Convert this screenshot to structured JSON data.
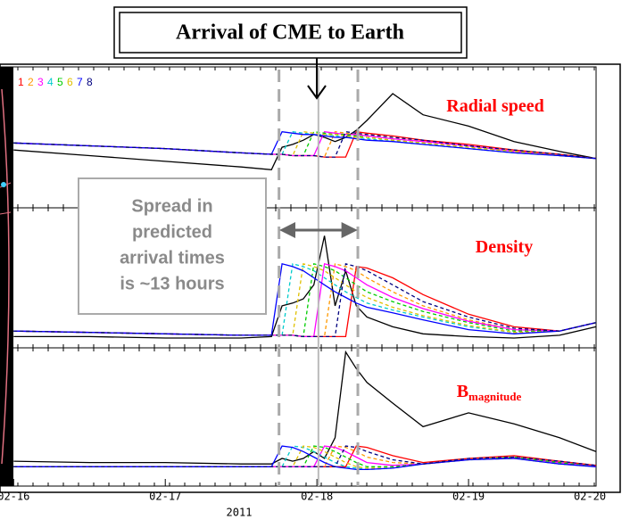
{
  "annotations": {
    "title": "Arrival of CME to Earth",
    "spread_text": [
      "Spread in",
      "predicted",
      "arrival times",
      "is ~13 hours"
    ],
    "arrival_line": 2.01,
    "spread_lines": [
      1.75,
      2.27
    ]
  },
  "chart_data": [
    {
      "type": "line",
      "title": "Radial speed",
      "legend": true,
      "x": [
        0,
        0.5,
        1,
        1.5,
        1.7,
        1.77,
        1.84,
        1.91,
        1.98,
        2.05,
        2.12,
        2.19,
        2.26,
        2.33,
        2.5,
        2.7,
        3.0,
        3.3,
        3.6,
        3.84
      ],
      "xlim": [
        -0.09,
        4
      ],
      "ylim": [
        0,
        1
      ],
      "series": [
        {
          "color": "#000000",
          "dashed": false,
          "values": [
            0.41,
            0.37,
            0.33,
            0.29,
            0.27,
            0.43,
            0.45,
            0.48,
            0.52,
            0.5,
            0.47,
            0.5,
            0.55,
            0.62,
            0.81,
            0.66,
            0.58,
            0.47,
            0.4,
            0.35
          ]
        },
        {
          "name": "1",
          "color": "#ff0000",
          "dashed": false,
          "values": [
            0.46,
            0.44,
            0.42,
            0.39,
            0.38,
            0.38,
            0.37,
            0.37,
            0.37,
            0.36,
            0.36,
            0.36,
            0.54,
            0.53,
            0.51,
            0.48,
            0.45,
            0.41,
            0.38,
            0.35
          ]
        },
        {
          "name": "2",
          "color": "#ff9900",
          "dashed": true,
          "values": [
            0.46,
            0.44,
            0.42,
            0.39,
            0.38,
            0.38,
            0.37,
            0.37,
            0.37,
            0.36,
            0.54,
            0.53,
            0.52,
            0.52,
            0.5,
            0.47,
            0.44,
            0.41,
            0.38,
            0.35
          ]
        },
        {
          "name": "3",
          "color": "#ff00ff",
          "dashed": false,
          "values": [
            0.46,
            0.44,
            0.42,
            0.39,
            0.38,
            0.38,
            0.37,
            0.37,
            0.37,
            0.54,
            0.53,
            0.52,
            0.52,
            0.51,
            0.49,
            0.47,
            0.44,
            0.4,
            0.37,
            0.35
          ]
        },
        {
          "name": "4",
          "color": "#00cccc",
          "dashed": true,
          "values": [
            0.46,
            0.44,
            0.42,
            0.39,
            0.38,
            0.38,
            0.54,
            0.53,
            0.52,
            0.52,
            0.51,
            0.5,
            0.5,
            0.49,
            0.47,
            0.45,
            0.42,
            0.39,
            0.37,
            0.35
          ]
        },
        {
          "name": "5",
          "color": "#00cc00",
          "dashed": true,
          "values": [
            0.46,
            0.44,
            0.42,
            0.39,
            0.38,
            0.38,
            0.37,
            0.37,
            0.54,
            0.53,
            0.52,
            0.52,
            0.51,
            0.5,
            0.48,
            0.46,
            0.43,
            0.4,
            0.37,
            0.35
          ]
        },
        {
          "name": "6",
          "color": "#e0c000",
          "dashed": true,
          "values": [
            0.46,
            0.44,
            0.42,
            0.39,
            0.38,
            0.38,
            0.37,
            0.54,
            0.53,
            0.52,
            0.52,
            0.51,
            0.5,
            0.5,
            0.48,
            0.46,
            0.43,
            0.4,
            0.37,
            0.35
          ]
        },
        {
          "name": "7",
          "color": "#0000ff",
          "dashed": false,
          "values": [
            0.46,
            0.44,
            0.42,
            0.39,
            0.38,
            0.54,
            0.53,
            0.52,
            0.52,
            0.51,
            0.5,
            0.5,
            0.49,
            0.48,
            0.47,
            0.45,
            0.42,
            0.39,
            0.37,
            0.35
          ]
        },
        {
          "name": "8",
          "color": "#000080",
          "dashed": true,
          "values": [
            0.46,
            0.44,
            0.42,
            0.39,
            0.38,
            0.38,
            0.37,
            0.37,
            0.37,
            0.36,
            0.36,
            0.54,
            0.53,
            0.52,
            0.5,
            0.48,
            0.44,
            0.41,
            0.38,
            0.35
          ]
        }
      ]
    },
    {
      "type": "line",
      "title": "Density",
      "x": [
        0,
        0.5,
        1,
        1.5,
        1.7,
        1.77,
        1.84,
        1.91,
        1.98,
        2.05,
        2.12,
        2.19,
        2.26,
        2.33,
        2.5,
        2.7,
        3.0,
        3.3,
        3.6,
        3.84
      ],
      "xlim": [
        -0.09,
        4
      ],
      "ylim": [
        0,
        1
      ],
      "series": [
        {
          "color": "#000000",
          "dashed": false,
          "values": [
            0.08,
            0.08,
            0.07,
            0.07,
            0.08,
            0.3,
            0.32,
            0.35,
            0.45,
            0.8,
            0.3,
            0.55,
            0.3,
            0.22,
            0.15,
            0.1,
            0.08,
            0.07,
            0.09,
            0.15
          ]
        },
        {
          "color": "#ff0000",
          "dashed": false,
          "values": [
            0.12,
            0.11,
            0.1,
            0.09,
            0.09,
            0.09,
            0.09,
            0.08,
            0.08,
            0.08,
            0.08,
            0.08,
            0.58,
            0.57,
            0.5,
            0.38,
            0.24,
            0.15,
            0.12,
            0.18
          ]
        },
        {
          "color": "#ff9900",
          "dashed": true,
          "values": [
            0.12,
            0.11,
            0.1,
            0.09,
            0.09,
            0.09,
            0.09,
            0.08,
            0.08,
            0.08,
            0.6,
            0.58,
            0.55,
            0.5,
            0.4,
            0.3,
            0.2,
            0.13,
            0.12,
            0.18
          ]
        },
        {
          "color": "#ff00ff",
          "dashed": false,
          "values": [
            0.12,
            0.11,
            0.1,
            0.09,
            0.09,
            0.09,
            0.09,
            0.08,
            0.08,
            0.6,
            0.58,
            0.55,
            0.5,
            0.45,
            0.36,
            0.28,
            0.19,
            0.13,
            0.12,
            0.18
          ]
        },
        {
          "color": "#00cccc",
          "dashed": true,
          "values": [
            0.12,
            0.11,
            0.1,
            0.09,
            0.09,
            0.09,
            0.6,
            0.58,
            0.55,
            0.5,
            0.45,
            0.4,
            0.36,
            0.32,
            0.27,
            0.22,
            0.15,
            0.11,
            0.12,
            0.18
          ]
        },
        {
          "color": "#00cc00",
          "dashed": true,
          "values": [
            0.12,
            0.11,
            0.1,
            0.09,
            0.09,
            0.09,
            0.09,
            0.08,
            0.6,
            0.58,
            0.55,
            0.5,
            0.45,
            0.4,
            0.33,
            0.26,
            0.18,
            0.12,
            0.12,
            0.18
          ]
        },
        {
          "color": "#e0c000",
          "dashed": true,
          "values": [
            0.12,
            0.11,
            0.1,
            0.09,
            0.09,
            0.09,
            0.09,
            0.6,
            0.58,
            0.55,
            0.5,
            0.45,
            0.4,
            0.36,
            0.29,
            0.23,
            0.16,
            0.11,
            0.12,
            0.18
          ]
        },
        {
          "color": "#0000ff",
          "dashed": false,
          "values": [
            0.12,
            0.11,
            0.1,
            0.09,
            0.09,
            0.6,
            0.58,
            0.55,
            0.5,
            0.45,
            0.4,
            0.36,
            0.32,
            0.29,
            0.25,
            0.2,
            0.13,
            0.1,
            0.12,
            0.18
          ]
        },
        {
          "color": "#000080",
          "dashed": true,
          "values": [
            0.12,
            0.11,
            0.1,
            0.09,
            0.09,
            0.09,
            0.09,
            0.08,
            0.08,
            0.08,
            0.08,
            0.6,
            0.58,
            0.55,
            0.45,
            0.33,
            0.22,
            0.14,
            0.12,
            0.18
          ]
        }
      ]
    },
    {
      "type": "line",
      "title": "B",
      "title_subscript": "magnitude",
      "xlabel": "2011",
      "x": [
        0,
        0.5,
        1,
        1.5,
        1.7,
        1.77,
        1.84,
        1.91,
        1.98,
        2.05,
        2.12,
        2.19,
        2.26,
        2.33,
        2.5,
        2.7,
        3.0,
        3.3,
        3.6,
        3.84
      ],
      "xlim": [
        -0.09,
        4
      ],
      "ylim": [
        0,
        1
      ],
      "xticks": [
        {
          "value": 0,
          "label": "02-16"
        },
        {
          "value": 1,
          "label": "02-17"
        },
        {
          "value": 2,
          "label": "02-18"
        },
        {
          "value": 3,
          "label": "02-19"
        },
        {
          "value": 4,
          "label": "02-20"
        }
      ],
      "series": [
        {
          "color": "#000000",
          "dashed": false,
          "values": [
            0.18,
            0.17,
            0.17,
            0.16,
            0.16,
            0.2,
            0.18,
            0.2,
            0.25,
            0.2,
            0.35,
            0.97,
            0.85,
            0.75,
            0.6,
            0.43,
            0.53,
            0.45,
            0.35,
            0.25
          ]
        },
        {
          "color": "#ff0000",
          "dashed": false,
          "values": [
            0.14,
            0.14,
            0.14,
            0.14,
            0.14,
            0.14,
            0.14,
            0.14,
            0.14,
            0.14,
            0.14,
            0.14,
            0.29,
            0.28,
            0.22,
            0.17,
            0.2,
            0.22,
            0.18,
            0.15
          ]
        },
        {
          "color": "#ff9900",
          "dashed": true,
          "values": [
            0.14,
            0.14,
            0.14,
            0.14,
            0.14,
            0.14,
            0.14,
            0.14,
            0.14,
            0.14,
            0.29,
            0.28,
            0.25,
            0.21,
            0.17,
            0.16,
            0.19,
            0.21,
            0.17,
            0.14
          ]
        },
        {
          "color": "#ff00ff",
          "dashed": false,
          "values": [
            0.14,
            0.14,
            0.14,
            0.14,
            0.14,
            0.14,
            0.14,
            0.14,
            0.14,
            0.29,
            0.28,
            0.25,
            0.21,
            0.17,
            0.15,
            0.16,
            0.19,
            0.21,
            0.17,
            0.14
          ]
        },
        {
          "color": "#00cccc",
          "dashed": true,
          "values": [
            0.14,
            0.14,
            0.14,
            0.14,
            0.14,
            0.14,
            0.29,
            0.28,
            0.25,
            0.21,
            0.17,
            0.14,
            0.13,
            0.12,
            0.13,
            0.16,
            0.19,
            0.2,
            0.16,
            0.14
          ]
        },
        {
          "color": "#00cc00",
          "dashed": true,
          "values": [
            0.14,
            0.14,
            0.14,
            0.14,
            0.14,
            0.14,
            0.14,
            0.14,
            0.29,
            0.28,
            0.25,
            0.21,
            0.17,
            0.14,
            0.14,
            0.16,
            0.19,
            0.21,
            0.17,
            0.14
          ]
        },
        {
          "color": "#e0c000",
          "dashed": true,
          "values": [
            0.14,
            0.14,
            0.14,
            0.14,
            0.14,
            0.14,
            0.14,
            0.29,
            0.28,
            0.25,
            0.21,
            0.17,
            0.14,
            0.13,
            0.13,
            0.16,
            0.19,
            0.2,
            0.16,
            0.14
          ]
        },
        {
          "color": "#0000ff",
          "dashed": false,
          "values": [
            0.14,
            0.14,
            0.14,
            0.14,
            0.14,
            0.29,
            0.28,
            0.25,
            0.21,
            0.17,
            0.14,
            0.13,
            0.12,
            0.12,
            0.13,
            0.16,
            0.19,
            0.2,
            0.16,
            0.14
          ]
        },
        {
          "color": "#000080",
          "dashed": true,
          "values": [
            0.14,
            0.14,
            0.14,
            0.14,
            0.14,
            0.14,
            0.14,
            0.14,
            0.14,
            0.14,
            0.14,
            0.29,
            0.28,
            0.25,
            0.19,
            0.16,
            0.2,
            0.21,
            0.18,
            0.15
          ]
        }
      ]
    }
  ]
}
